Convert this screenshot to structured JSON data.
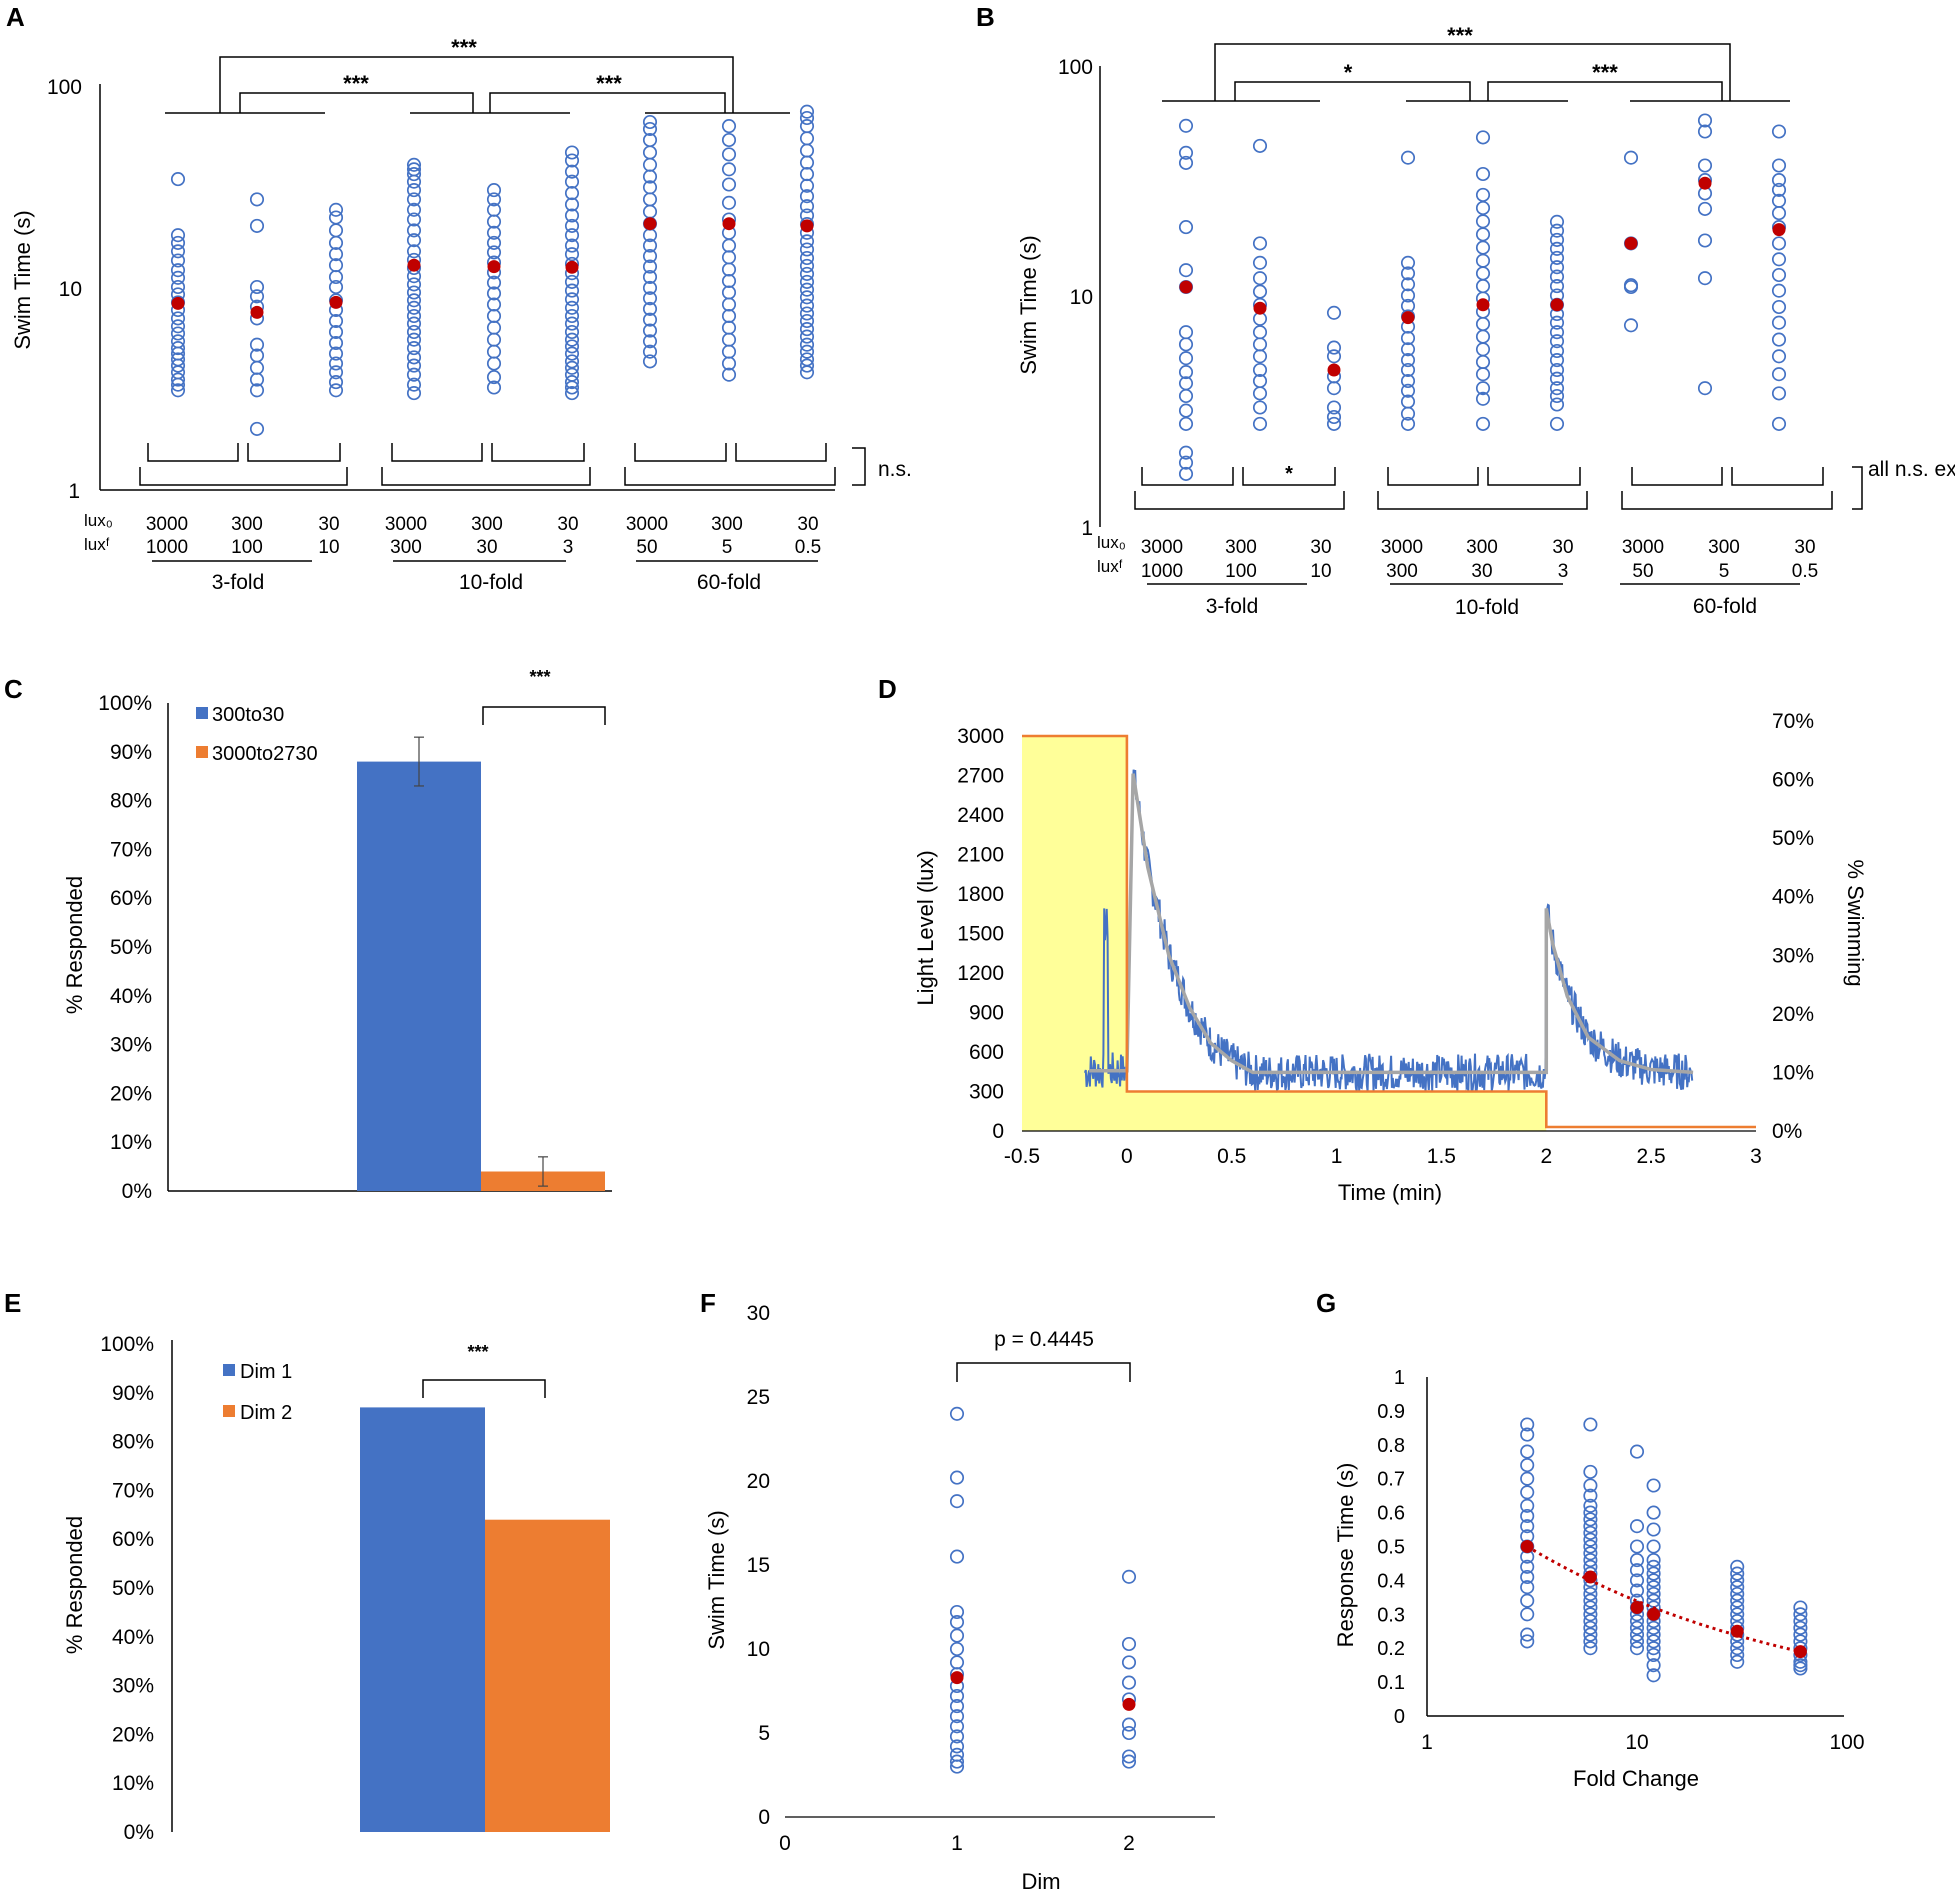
{
  "figure": {
    "panel_letters": [
      "A",
      "B",
      "C",
      "D",
      "E",
      "F",
      "G"
    ]
  },
  "colors": {
    "blue": "#4472c4",
    "red": "#c00000",
    "orange": "#ed7d31",
    "yellow_fill": "#ffff99",
    "gray": "#a6a6a6",
    "axis": "#000000"
  },
  "chart_data": [
    {
      "id": "A",
      "type": "scatter",
      "ylabel": "Swim Time (s)",
      "yscale": "log",
      "ylim": [
        1,
        100
      ],
      "ytick_labels": [
        "1",
        "10",
        "100"
      ],
      "row_labels": [
        "lux₀",
        "luxᶠ"
      ],
      "lux0": [
        "3000",
        "300",
        "30",
        "3000",
        "300",
        "30",
        "3000",
        "300",
        "30"
      ],
      "luxF": [
        "1000",
        "100",
        "10",
        "300",
        "30",
        "3",
        "50",
        "5",
        "0.5"
      ],
      "group_labels": [
        "3-fold",
        "10-fold",
        "60-fold"
      ],
      "top_significance": [
        "***",
        "***",
        "***"
      ],
      "bottom_significance": "n.s.",
      "series": [
        {
          "name": "individual",
          "columns": [
            [
              3.1,
              3.3,
              3.5,
              3.8,
              4.1,
              4.4,
              4.7,
              5.0,
              5.4,
              5.9,
              6.4,
              7.0,
              7.7,
              8.4,
              9.2,
              10.0,
              11.1,
              12.1,
              13.5,
              15.0,
              16.5,
              18.0,
              34.0
            ],
            [
              2.0,
              3.1,
              3.5,
              4.0,
              4.6,
              5.2,
              7.0,
              8.0,
              9.0,
              10.0,
              20.0,
              27.0
            ],
            [
              3.1,
              3.4,
              3.8,
              4.2,
              4.7,
              5.3,
              6.0,
              6.8,
              7.7,
              8.6,
              10.0,
              11.2,
              12.8,
              14.5,
              16.5,
              19.0,
              22.0,
              24.0
            ],
            [
              3.0,
              3.3,
              3.7,
              4.1,
              4.5,
              5.0,
              5.5,
              6.0,
              6.6,
              7.2,
              7.9,
              8.6,
              9.4,
              10.3,
              11.3,
              12.4,
              13.6,
              15.0,
              17.0,
              19.0,
              21.5,
              24.0,
              27.0,
              30.0,
              33.0,
              36.0,
              38.0,
              40.0
            ],
            [
              3.2,
              3.6,
              4.2,
              4.8,
              5.5,
              6.3,
              7.2,
              8.2,
              9.3,
              10.5,
              11.8,
              13.2,
              14.8,
              16.5,
              18.5,
              21.0,
              24.0,
              27.0,
              30.0
            ],
            [
              3.0,
              3.2,
              3.4,
              3.7,
              4.0,
              4.3,
              4.7,
              5.1,
              5.5,
              6.0,
              6.6,
              7.2,
              7.9,
              8.7,
              9.6,
              10.6,
              11.7,
              13.0,
              14.5,
              16.0,
              18.0,
              20.0,
              22.5,
              25.5,
              29.0,
              33.0,
              37.0,
              42.0,
              46.0
            ],
            [
              4.3,
              4.8,
              5.4,
              6.1,
              6.9,
              7.8,
              8.8,
              9.9,
              11.2,
              12.6,
              14.2,
              16.0,
              18.0,
              20.5,
              23.5,
              27.0,
              31.0,
              35.0,
              40.0,
              46.0,
              53.0,
              60.0,
              65.0
            ],
            [
              3.7,
              4.2,
              4.8,
              5.5,
              6.3,
              7.2,
              8.2,
              9.4,
              10.7,
              12.2,
              14.0,
              16.0,
              18.5,
              21.5,
              26.0,
              32.0,
              38.0,
              45.0,
              53.0,
              62.0
            ],
            [
              3.8,
              4.1,
              4.4,
              4.8,
              5.2,
              5.7,
              6.2,
              6.8,
              7.4,
              8.1,
              8.9,
              9.7,
              10.6,
              11.6,
              12.7,
              13.9,
              15.3,
              16.8,
              18.5,
              20.4,
              22.5,
              25.0,
              28.0,
              31.5,
              36.0,
              41.0,
              47.0,
              54.0,
              62.0,
              68.0,
              73.0
            ]
          ]
        },
        {
          "name": "median",
          "values": [
            8.3,
            7.5,
            8.4,
            12.8,
            12.6,
            12.5,
            20.5,
            20.5,
            20.0
          ]
        }
      ]
    },
    {
      "id": "B",
      "type": "scatter",
      "ylabel": "Swim Time (s)",
      "yscale": "log",
      "ylim": [
        1,
        100
      ],
      "ytick_labels": [
        "1",
        "10",
        "100"
      ],
      "row_labels": [
        "lux₀",
        "luxᶠ"
      ],
      "lux0": [
        "3000",
        "300",
        "30",
        "3000",
        "300",
        "30",
        "3000",
        "300",
        "30"
      ],
      "luxF": [
        "1000",
        "100",
        "10",
        "300",
        "30",
        "3",
        "50",
        "5",
        "0.5"
      ],
      "group_labels": [
        "3-fold",
        "10-fold",
        "60-fold"
      ],
      "top_significance": [
        "***",
        "*",
        "***"
      ],
      "bottom_significance_inner": "*",
      "bottom_significance": "all n.s. except *",
      "series": [
        {
          "name": "individual",
          "columns": [
            [
              1.7,
              1.9,
              2.1,
              2.8,
              3.2,
              3.7,
              4.2,
              4.7,
              5.4,
              6.2,
              7.0,
              11.0,
              13.0,
              20.0,
              38.0,
              42.0,
              55.0
            ],
            [
              2.8,
              3.3,
              3.8,
              4.3,
              4.8,
              5.5,
              6.2,
              7.0,
              8.0,
              9.2,
              10.5,
              12.0,
              14.0,
              17.0,
              45.0
            ],
            [
              2.8,
              3.0,
              3.3,
              4.0,
              4.5,
              5.5,
              6.0,
              8.5
            ],
            [
              2.8,
              3.1,
              3.5,
              3.9,
              4.3,
              4.8,
              5.3,
              5.9,
              6.6,
              7.4,
              8.2,
              9.1,
              10.1,
              11.3,
              12.6,
              14.0,
              40.0
            ],
            [
              2.8,
              3.6,
              4.0,
              4.6,
              5.2,
              5.9,
              6.7,
              7.6,
              8.6,
              9.8,
              11.1,
              12.6,
              14.3,
              16.3,
              18.6,
              21.2,
              24.2,
              27.6,
              34.0,
              49.0
            ],
            [
              2.8,
              3.4,
              3.7,
              4.0,
              4.4,
              4.8,
              5.3,
              5.8,
              6.4,
              7.0,
              7.7,
              8.4,
              9.2,
              10.1,
              11.1,
              12.2,
              13.4,
              14.7,
              16.1,
              17.6,
              19.3,
              21.1
            ],
            [
              7.5,
              11.0,
              11.2,
              17.0,
              40.0
            ],
            [
              4.0,
              12.0,
              17.5,
              24.0,
              28.0,
              32.0,
              37.0,
              52.0,
              58.0
            ],
            [
              2.8,
              3.8,
              4.6,
              5.5,
              6.5,
              7.7,
              9.0,
              10.6,
              12.4,
              14.5,
              17.0,
              20.0,
              23.0,
              26.0,
              29.0,
              32.0,
              37.0,
              52.0
            ]
          ]
        },
        {
          "name": "median",
          "values": [
            11.0,
            8.9,
            4.8,
            8.1,
            9.2,
            9.2,
            17.0,
            31.0,
            19.5
          ]
        }
      ]
    },
    {
      "id": "C",
      "type": "bar",
      "ylabel": "% Responded",
      "ylim": [
        0,
        100
      ],
      "ytick_labels": [
        "0%",
        "10%",
        "20%",
        "30%",
        "40%",
        "50%",
        "60%",
        "70%",
        "80%",
        "90%",
        "100%"
      ],
      "series": [
        {
          "name": "300to30",
          "value": 88,
          "error": 5
        },
        {
          "name": "3000to2730",
          "value": 4,
          "error": 3
        }
      ],
      "significance": "***"
    },
    {
      "id": "D",
      "type": "line",
      "xlabel": "Time (min)",
      "ylabel": "Light Level (lux)",
      "ylabel_right": "% Swimming",
      "xlim": [
        -0.5,
        3
      ],
      "ylim": [
        0,
        3000
      ],
      "ylim_right": [
        0,
        70
      ],
      "xtick_labels": [
        "-0.5",
        "0",
        "0.5",
        "1",
        "1.5",
        "2",
        "2.5",
        "3"
      ],
      "ytick_labels": [
        "0",
        "300",
        "600",
        "900",
        "1200",
        "1500",
        "1800",
        "2100",
        "2400",
        "2700",
        "3000"
      ],
      "ytick_labels_right": [
        "0%",
        "10%",
        "20%",
        "30%",
        "40%",
        "50%",
        "60%",
        "70%"
      ],
      "light_level": {
        "x": [
          -0.5,
          0,
          0,
          2,
          2,
          3
        ],
        "y": [
          3000,
          3000,
          300,
          300,
          30,
          30
        ]
      },
      "swimming_fit": {
        "x": [
          -0.18,
          0,
          0.03,
          0.1,
          0.2,
          0.3,
          0.4,
          0.5,
          0.6,
          2.0,
          2.0,
          2.03,
          2.1,
          2.2,
          2.35,
          2.5,
          2.7
        ],
        "y": [
          10.3,
          10.3,
          61,
          45,
          30,
          21,
          15,
          12,
          10,
          10,
          38,
          32,
          23,
          16,
          12,
          10.5,
          10
        ]
      }
    },
    {
      "id": "E",
      "type": "bar",
      "ylabel": "% Responded",
      "ylim": [
        0,
        100
      ],
      "ytick_labels": [
        "0%",
        "10%",
        "20%",
        "30%",
        "40%",
        "50%",
        "60%",
        "70%",
        "80%",
        "90%",
        "100%"
      ],
      "series": [
        {
          "name": "Dim 1",
          "value": 87
        },
        {
          "name": "Dim 2",
          "value": 64
        }
      ],
      "significance": "***"
    },
    {
      "id": "F",
      "type": "scatter",
      "xlabel": "Dim",
      "ylabel": "Swim Time (s)",
      "xlim": [
        0,
        2.5
      ],
      "ylim": [
        0,
        30
      ],
      "xtick_labels": [
        "0",
        "1",
        "2"
      ],
      "ytick_labels": [
        "0",
        "5",
        "10",
        "15",
        "20",
        "25",
        "30"
      ],
      "annotation": "p = 0.4445",
      "series": [
        {
          "name": "Dim 1",
          "x": 1,
          "values": [
            3.0,
            3.3,
            3.7,
            4.2,
            4.8,
            5.4,
            6.0,
            6.6,
            7.2,
            7.8,
            8.5,
            9.2,
            10.0,
            10.8,
            11.6,
            12.2,
            15.5,
            18.8,
            20.2,
            24.0
          ]
        },
        {
          "name": "Dim 2",
          "x": 2,
          "values": [
            3.3,
            3.6,
            5.0,
            5.5,
            7.0,
            8.0,
            9.2,
            10.3,
            14.3
          ]
        },
        {
          "name": "median",
          "x": [
            1,
            2
          ],
          "values": [
            8.3,
            6.7
          ]
        }
      ]
    },
    {
      "id": "G",
      "type": "scatter",
      "xlabel": "Fold Change",
      "ylabel": "Response Time (s)",
      "xscale": "log",
      "xlim": [
        1,
        100
      ],
      "ylim": [
        0,
        1
      ],
      "xtick_labels": [
        "1",
        "10",
        "100"
      ],
      "ytick_labels": [
        "0",
        "0.1",
        "0.2",
        "0.3",
        "0.4",
        "0.5",
        "0.6",
        "0.7",
        "0.8",
        "0.9",
        "1"
      ],
      "series": [
        {
          "name": "individual",
          "groups": [
            {
              "x": 3,
              "values": [
                0.22,
                0.24,
                0.3,
                0.34,
                0.38,
                0.41,
                0.44,
                0.47,
                0.5,
                0.53,
                0.56,
                0.59,
                0.62,
                0.66,
                0.7,
                0.74,
                0.78,
                0.83,
                0.86
              ]
            },
            {
              "x": 6,
              "values": [
                0.2,
                0.22,
                0.24,
                0.26,
                0.28,
                0.3,
                0.32,
                0.34,
                0.36,
                0.38,
                0.4,
                0.42,
                0.44,
                0.46,
                0.48,
                0.5,
                0.52,
                0.54,
                0.56,
                0.58,
                0.6,
                0.62,
                0.65,
                0.68,
                0.72,
                0.86
              ]
            },
            {
              "x": 10,
              "values": [
                0.2,
                0.22,
                0.24,
                0.26,
                0.28,
                0.3,
                0.32,
                0.34,
                0.37,
                0.4,
                0.43,
                0.46,
                0.5,
                0.56,
                0.78
              ]
            },
            {
              "x": 12,
              "values": [
                0.12,
                0.15,
                0.18,
                0.2,
                0.22,
                0.24,
                0.26,
                0.28,
                0.3,
                0.32,
                0.34,
                0.36,
                0.38,
                0.4,
                0.42,
                0.44,
                0.46,
                0.5,
                0.55,
                0.6,
                0.68
              ]
            },
            {
              "x": 30,
              "values": [
                0.16,
                0.18,
                0.2,
                0.22,
                0.24,
                0.26,
                0.28,
                0.3,
                0.32,
                0.34,
                0.36,
                0.38,
                0.4,
                0.42,
                0.44
              ]
            },
            {
              "x": 60,
              "values": [
                0.14,
                0.15,
                0.16,
                0.18,
                0.2,
                0.22,
                0.24,
                0.26,
                0.28,
                0.3,
                0.32
              ]
            }
          ]
        },
        {
          "name": "mean",
          "x": [
            3,
            6,
            10,
            12,
            30,
            60
          ],
          "values": [
            0.5,
            0.41,
            0.32,
            0.3,
            0.25,
            0.19
          ]
        },
        {
          "name": "trend",
          "x": [
            3,
            60
          ],
          "values": [
            0.5,
            0.19
          ]
        }
      ]
    }
  ]
}
